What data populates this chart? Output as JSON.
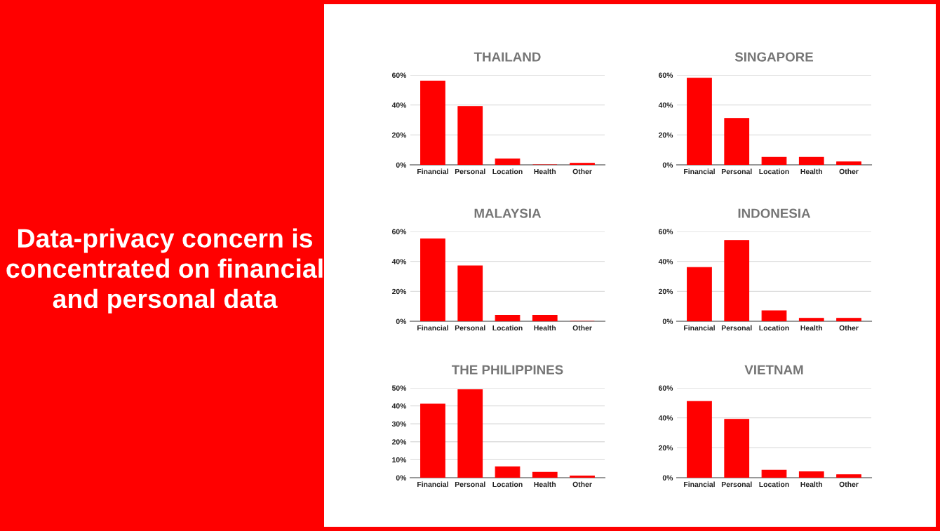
{
  "chart_data": [
    {
      "type": "other",
      "title": "Data-privacy concern is concentrated on financial and personal data"
    },
    {
      "type": "bar",
      "title": "THAILAND",
      "categories": [
        "Financial",
        "Personal",
        "Location",
        "Health",
        "Other"
      ],
      "values": [
        56,
        39,
        4,
        0,
        1
      ],
      "color": "#ff0000",
      "ylim": [
        0,
        60
      ],
      "yticks": [
        {
          "value": 0,
          "label": "0%"
        },
        {
          "value": 20,
          "label": "20%"
        },
        {
          "value": 40,
          "label": "40%"
        },
        {
          "value": 60,
          "label": "60%"
        }
      ],
      "grid": "y"
    },
    {
      "type": "bar",
      "title": "SINGAPORE",
      "categories": [
        "Financial",
        "Personal",
        "Location",
        "Health",
        "Other"
      ],
      "values": [
        58,
        31,
        5,
        5,
        2
      ],
      "color": "#ff0000",
      "ylim": [
        0,
        60
      ],
      "yticks": [
        {
          "value": 0,
          "label": "0%"
        },
        {
          "value": 20,
          "label": "20%"
        },
        {
          "value": 40,
          "label": "40%"
        },
        {
          "value": 60,
          "label": "60%"
        }
      ],
      "grid": "y"
    },
    {
      "type": "bar",
      "title": "MALAYSIA",
      "categories": [
        "Financial",
        "Personal",
        "Location",
        "Health",
        "Other"
      ],
      "values": [
        55,
        37,
        4,
        4,
        0
      ],
      "color": "#ff0000",
      "ylim": [
        0,
        60
      ],
      "yticks": [
        {
          "value": 0,
          "label": "0%"
        },
        {
          "value": 20,
          "label": "20%"
        },
        {
          "value": 40,
          "label": "40%"
        },
        {
          "value": 60,
          "label": "60%"
        }
      ],
      "grid": "y"
    },
    {
      "type": "bar",
      "title": "INDONESIA",
      "categories": [
        "Financial",
        "Personal",
        "Location",
        "Health",
        "Other"
      ],
      "values": [
        36,
        54,
        7,
        2,
        2
      ],
      "color": "#ff0000",
      "ylim": [
        0,
        60
      ],
      "yticks": [
        {
          "value": 0,
          "label": "0%"
        },
        {
          "value": 20,
          "label": "20%"
        },
        {
          "value": 40,
          "label": "40%"
        },
        {
          "value": 60,
          "label": "60%"
        }
      ],
      "grid": "y"
    },
    {
      "type": "bar",
      "title": "THE PHILIPPINES",
      "categories": [
        "Financial",
        "Personal",
        "Location",
        "Health",
        "Other"
      ],
      "values": [
        41,
        49,
        6,
        3,
        1
      ],
      "color": "#ff0000",
      "ylim": [
        0,
        50
      ],
      "yticks": [
        {
          "value": 0,
          "label": "0%"
        },
        {
          "value": 10,
          "label": "10%"
        },
        {
          "value": 20,
          "label": "20%"
        },
        {
          "value": 30,
          "label": "30%"
        },
        {
          "value": 40,
          "label": "40%"
        },
        {
          "value": 50,
          "label": "50%"
        }
      ],
      "grid": "y"
    },
    {
      "type": "bar",
      "title": "VIETNAM",
      "categories": [
        "Financial",
        "Personal",
        "Location",
        "Health",
        "Other"
      ],
      "values": [
        51,
        39,
        5,
        4,
        2
      ],
      "color": "#ff0000",
      "ylim": [
        0,
        60
      ],
      "yticks": [
        {
          "value": 0,
          "label": "0%"
        },
        {
          "value": 20,
          "label": "20%"
        },
        {
          "value": 40,
          "label": "40%"
        },
        {
          "value": 60,
          "label": "60%"
        }
      ],
      "grid": "y"
    }
  ]
}
